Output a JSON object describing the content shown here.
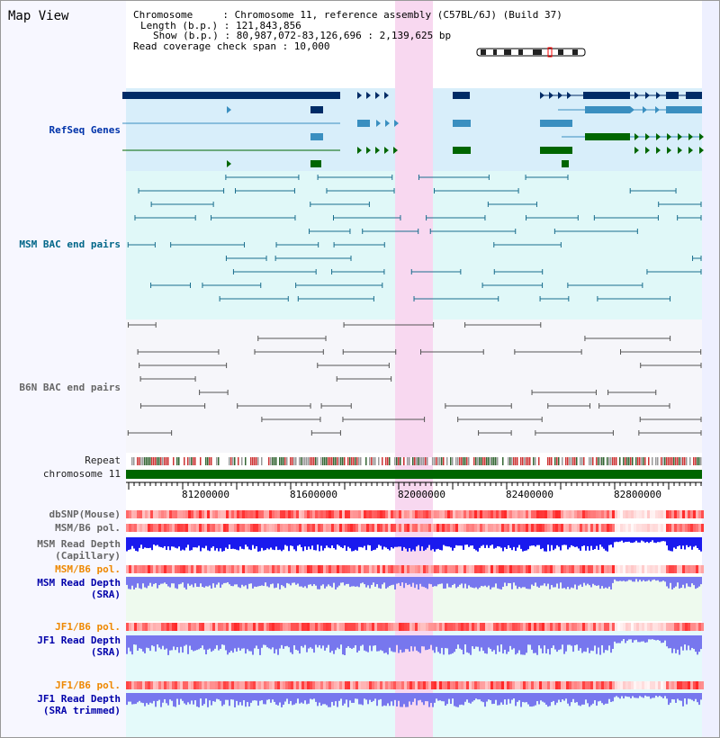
{
  "title": "Map View",
  "info": {
    "chromosome": "Chromosome     : Chromosome 11, reference assembly (C57BL/6J) (Build 37)",
    "length": "Length (b.p.) : 121,843,856",
    "show": "Show (b.p.) : 80,987,072-83,126,696 : 2,139,625 bp",
    "coverage": "Read coverage check span : 10,000"
  },
  "tracks": {
    "refseq": "RefSeq Genes",
    "msm_bac": "MSM BAC end pairs",
    "b6n_bac": "B6N BAC end pairs",
    "repeat": "Repeat",
    "chromosome": "chromosome 11",
    "dbsnp": "dbSNP(Mouse)",
    "msm_pol_1": "MSM/B6 pol.",
    "msm_depth_cap_1": "MSM Read Depth",
    "msm_depth_cap_2": "(Capillary)",
    "msm_pol_2": "MSM/B6 pol.",
    "msm_depth_sra_1": "MSM Read Depth",
    "msm_depth_sra_2": "(SRA)",
    "jf1_pol_1": "JF1/B6 pol.",
    "jf1_depth_sra_1": "JF1 Read Depth",
    "jf1_depth_sra_2": "(SRA)",
    "jf1_pol_2": "JF1/B6 pol.",
    "jf1_depth_trim_1": "JF1 Read Depth",
    "jf1_depth_trim_2": "(SRA trimmed)"
  },
  "axis_ticks": [
    "81200000",
    "81600000",
    "82000000",
    "82400000",
    "82800000"
  ],
  "colors": {
    "refseq_dark": "#002b66",
    "refseq_mid": "#3a8fc0",
    "refseq_green": "#006600",
    "msm_line": "#1a6e8e",
    "b6n_line": "#555555",
    "highlight": "#f8d8f0",
    "chromosome_bar": "#006600",
    "depth_dark": "#1a1aee",
    "depth_light": "#7777ee"
  }
}
